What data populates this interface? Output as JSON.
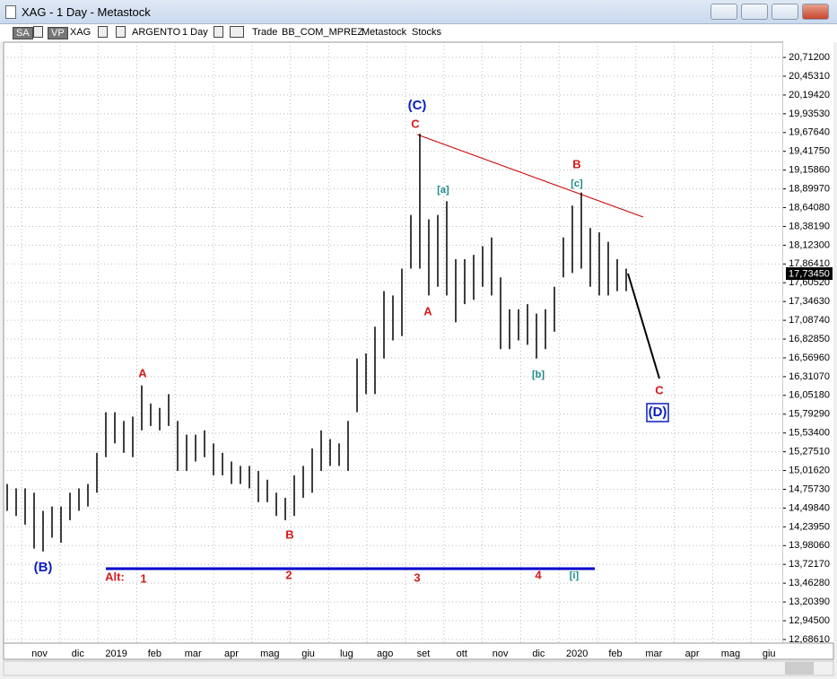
{
  "window": {
    "title": "XAG - 1 Day - Metastock"
  },
  "toolbar": [
    "SA",
    "VP",
    "XAG",
    "ARGENTO",
    "1 Day",
    "Trade",
    "BB_COM_MPREZ",
    "Metastock",
    "Stocks"
  ],
  "chart_data": {
    "type": "hilo",
    "color": "#000000",
    "last_price": "17,73450",
    "months": [
      "nov",
      "dic",
      "2019",
      "feb",
      "mar",
      "apr",
      "mag",
      "giu",
      "lug",
      "ago",
      "set",
      "ott",
      "nov",
      "dic",
      "2020",
      "feb",
      "mar",
      "apr",
      "mag",
      "giu"
    ],
    "ylim": [
      12.636,
      20.923
    ],
    "yticks": [
      {
        "value": 20.712,
        "label": "20,71200"
      },
      {
        "value": 20.4531,
        "label": "20,45310"
      },
      {
        "value": 20.1942,
        "label": "20,19420"
      },
      {
        "value": 19.9353,
        "label": "19,93530"
      },
      {
        "value": 19.6764,
        "label": "19,67640"
      },
      {
        "value": 19.4175,
        "label": "19,41750"
      },
      {
        "value": 19.1586,
        "label": "19,15860"
      },
      {
        "value": 18.8997,
        "label": "18,89970"
      },
      {
        "value": 18.6408,
        "label": "18,64080"
      },
      {
        "value": 18.3819,
        "label": "18,38190"
      },
      {
        "value": 18.123,
        "label": "18,12300"
      },
      {
        "value": 17.8641,
        "label": "17,86410"
      },
      {
        "value": 17.6052,
        "label": "17,60520"
      },
      {
        "value": 17.3463,
        "label": "17,34630"
      },
      {
        "value": 17.0874,
        "label": "17,08740"
      },
      {
        "value": 16.8285,
        "label": "16,82850"
      },
      {
        "value": 16.5696,
        "label": "16,56960"
      },
      {
        "value": 16.3107,
        "label": "16,31070"
      },
      {
        "value": 16.0518,
        "label": "16,05180"
      },
      {
        "value": 15.7929,
        "label": "15,79290"
      },
      {
        "value": 15.534,
        "label": "15,53400"
      },
      {
        "value": 15.2751,
        "label": "15,27510"
      },
      {
        "value": 15.0162,
        "label": "15,01620"
      },
      {
        "value": 14.7573,
        "label": "14,75730"
      },
      {
        "value": 14.4984,
        "label": "14,49840"
      },
      {
        "value": 14.2395,
        "label": "14,23950"
      },
      {
        "value": 13.9806,
        "label": "13,98060"
      },
      {
        "value": 13.7217,
        "label": "13,72170"
      },
      {
        "value": 13.4628,
        "label": "13,46280"
      },
      {
        "value": 13.2039,
        "label": "13,20390"
      },
      {
        "value": 12.945,
        "label": "12,94500"
      },
      {
        "value": 12.6861,
        "label": "12,68610"
      }
    ],
    "grid": true,
    "high": [
      14.83,
      14.77,
      14.77,
      14.71,
      14.46,
      14.52,
      14.52,
      14.71,
      14.77,
      14.83,
      15.26,
      15.82,
      15.82,
      15.7,
      15.76,
      16.19,
      15.94,
      15.88,
      16.07,
      15.7,
      15.51,
      15.51,
      15.57,
      15.39,
      15.26,
      15.14,
      15.08,
      15.08,
      15.01,
      14.89,
      14.71,
      14.64,
      14.95,
      15.08,
      15.32,
      15.57,
      15.45,
      15.39,
      15.7,
      16.56,
      16.63,
      17.0,
      17.49,
      17.43,
      17.8,
      18.54,
      19.66,
      18.48,
      18.54,
      18.73,
      17.93,
      17.93,
      17.99,
      18.11,
      18.23,
      17.68,
      17.24,
      17.24,
      17.31,
      17.18,
      17.24,
      17.55,
      18.23,
      18.67,
      18.85,
      18.36,
      18.3,
      18.17,
      17.93,
      17.8
    ],
    "low": [
      14.46,
      14.39,
      14.27,
      13.94,
      13.9,
      14.09,
      14.02,
      14.33,
      14.46,
      14.52,
      14.71,
      15.2,
      15.39,
      15.26,
      15.2,
      15.57,
      15.63,
      15.57,
      15.63,
      15.01,
      15.01,
      15.14,
      15.2,
      14.95,
      14.95,
      14.83,
      14.83,
      14.77,
      14.58,
      14.58,
      14.39,
      14.33,
      14.39,
      14.64,
      14.71,
      15.01,
      15.08,
      15.08,
      15.01,
      15.82,
      16.07,
      16.07,
      16.56,
      16.81,
      16.87,
      17.8,
      17.8,
      17.43,
      17.55,
      17.43,
      17.06,
      17.31,
      17.37,
      17.55,
      17.43,
      16.69,
      16.69,
      16.81,
      16.75,
      16.56,
      16.69,
      16.93,
      17.68,
      17.74,
      17.8,
      17.55,
      17.43,
      17.43,
      17.49,
      17.49
    ],
    "annotations": [
      {
        "text": "(C)",
        "color": "#0a1fbf"
      },
      {
        "text": "C",
        "color": "#d41a1a"
      },
      {
        "text": "[a]",
        "color": "#1a8a8a"
      },
      {
        "text": "B",
        "color": "#d41a1a"
      },
      {
        "text": "[c]",
        "color": "#1a8a8a"
      },
      {
        "text": "A",
        "color": "#d41a1a"
      },
      {
        "text": "[b]",
        "color": "#1a8a8a"
      },
      {
        "text": "A",
        "color": "#d41a1a"
      },
      {
        "text": "C",
        "color": "#d41a1a"
      },
      {
        "text": "(D)",
        "color": "#0a1fbf"
      },
      {
        "text": "B",
        "color": "#d41a1a"
      },
      {
        "text": "(B)",
        "color": "#0a1fbf"
      },
      {
        "text": "Alt:",
        "color": "#d41a1a"
      },
      {
        "text": "1",
        "color": "#d41a1a"
      },
      {
        "text": "2",
        "color": "#d41a1a"
      },
      {
        "text": "3",
        "color": "#d41a1a"
      },
      {
        "text": "4",
        "color": "#d41a1a"
      },
      {
        "text": "[i]",
        "color": "#1a8a8a"
      }
    ]
  }
}
